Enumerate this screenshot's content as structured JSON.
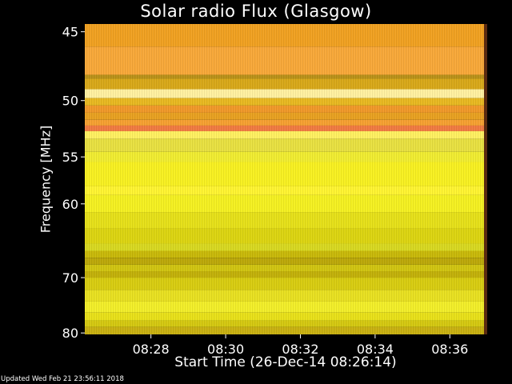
{
  "chart_data": {
    "type": "heatmap",
    "title": "Solar radio Flux (Glasgow)",
    "ylabel": "Frequency [MHz]",
    "xlabel": "Start Time (26-Dec-14 08:26:14)",
    "x_ticks": [
      "08:28",
      "08:30",
      "08:32",
      "08:34",
      "08:36"
    ],
    "x_tick_minutes": [
      28,
      30,
      32,
      34,
      36
    ],
    "x_range_minutes": [
      26.23,
      37.0
    ],
    "y_ticks": [
      45,
      50,
      55,
      60,
      70,
      80
    ],
    "y_range_mhz": [
      44.5,
      80.3
    ],
    "y_reversed": true,
    "y_scale": "reciprocal",
    "colormap": "yellow-orange",
    "bands": [
      {
        "from": 44.5,
        "to": 46.0,
        "color": "#f0a020"
      },
      {
        "from": 46.0,
        "to": 48.0,
        "color": "#f8a838"
      },
      {
        "from": 48.0,
        "to": 48.3,
        "color": "#b89018"
      },
      {
        "from": 48.3,
        "to": 49.1,
        "color": "#d8a818"
      },
      {
        "from": 49.1,
        "to": 49.8,
        "color": "#fff0a0"
      },
      {
        "from": 49.8,
        "to": 50.4,
        "color": "#e8b820"
      },
      {
        "from": 50.4,
        "to": 51.0,
        "color": "#f09828"
      },
      {
        "from": 51.0,
        "to": 51.6,
        "color": "#e8a020"
      },
      {
        "from": 51.6,
        "to": 52.1,
        "color": "#f6a030"
      },
      {
        "from": 52.1,
        "to": 52.6,
        "color": "#f07a40"
      },
      {
        "from": 52.6,
        "to": 53.3,
        "color": "#fff060"
      },
      {
        "from": 53.3,
        "to": 54.5,
        "color": "#e8e040"
      },
      {
        "from": 54.5,
        "to": 55.5,
        "color": "#f0ec30"
      },
      {
        "from": 55.5,
        "to": 58.0,
        "color": "#f8f020"
      },
      {
        "from": 58.0,
        "to": 59.0,
        "color": "#fff430"
      },
      {
        "from": 59.0,
        "to": 61.0,
        "color": "#f4f020"
      },
      {
        "from": 61.0,
        "to": 63.0,
        "color": "#e6e018"
      },
      {
        "from": 63.0,
        "to": 65.0,
        "color": "#dcd410"
      },
      {
        "from": 65.0,
        "to": 66.0,
        "color": "#d8d820"
      },
      {
        "from": 66.0,
        "to": 67.0,
        "color": "#c8b808"
      },
      {
        "from": 67.0,
        "to": 68.0,
        "color": "#bca808"
      },
      {
        "from": 68.0,
        "to": 69.0,
        "color": "#d0c410"
      },
      {
        "from": 69.0,
        "to": 70.0,
        "color": "#c2b008"
      },
      {
        "from": 70.0,
        "to": 72.0,
        "color": "#d8cc10"
      },
      {
        "from": 72.0,
        "to": 74.0,
        "color": "#e8e020"
      },
      {
        "from": 74.0,
        "to": 76.0,
        "color": "#f2ee28"
      },
      {
        "from": 76.0,
        "to": 77.5,
        "color": "#e8e018"
      },
      {
        "from": 77.5,
        "to": 78.8,
        "color": "#d4c810"
      },
      {
        "from": 78.8,
        "to": 80.3,
        "color": "#c8b010"
      }
    ]
  },
  "footer": {
    "updated": "Updated Wed Feb 21 23:56:11 2018"
  }
}
